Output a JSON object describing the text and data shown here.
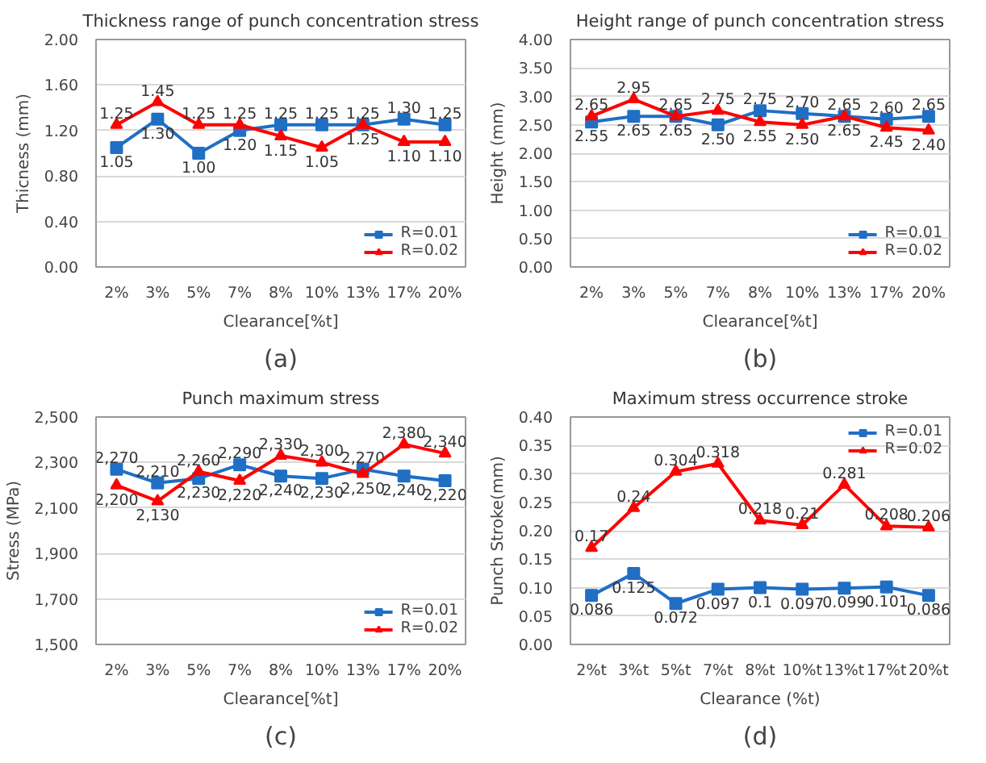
{
  "chart_data": [
    {
      "type": "line",
      "title": "Thickness range of punch concentration stress",
      "xlabel": "Clearance[%t]",
      "ylabel": "Thicness (mm)",
      "annotations": [
        "(a)"
      ],
      "legend": "bottom right",
      "grid": "y",
      "categories": [
        "2%",
        "3%",
        "5%",
        "7%",
        "8%",
        "10%",
        "13%",
        "17%",
        "20%"
      ],
      "ylim": [
        0,
        2
      ],
      "yticks": [
        {
          "value": 0,
          "label": "0.00"
        },
        {
          "value": 0.4,
          "label": "0.40"
        },
        {
          "value": 0.8,
          "label": "0.80"
        },
        {
          "value": 1.2,
          "label": "1.20"
        },
        {
          "value": 1.6,
          "label": "1.60"
        },
        {
          "value": 2,
          "label": "2.00"
        }
      ],
      "series": [
        {
          "name": "R=0.01",
          "color": "#1f6fc5",
          "marker": "square",
          "values": [
            1.05,
            1.3,
            1.0,
            1.2,
            1.25,
            1.25,
            1.25,
            1.3,
            1.25
          ],
          "value_labels": [
            "1.05",
            "1.30",
            "1.00",
            "1.20",
            "1.25",
            "1.25",
            "1.25",
            "1.30",
            "1.25"
          ]
        },
        {
          "name": "R=0.02",
          "color": "#ff0000",
          "marker": "triangle",
          "values": [
            1.25,
            1.45,
            1.25,
            1.25,
            1.15,
            1.05,
            1.25,
            1.1,
            1.1
          ],
          "value_labels": [
            "1.25",
            "1.45",
            "1.25",
            "1.25",
            "1.15",
            "1.05",
            "1.25",
            "1.10",
            "1.10"
          ]
        }
      ]
    },
    {
      "type": "line",
      "title": "Height range of punch concentration stress",
      "xlabel": "Clearance[%t]",
      "ylabel": "Height (mm)",
      "annotations": [
        "(b)"
      ],
      "legend": "bottom right",
      "grid": "y",
      "categories": [
        "2%",
        "3%",
        "5%",
        "7%",
        "8%",
        "10%",
        "13%",
        "17%",
        "20%"
      ],
      "ylim": [
        0,
        4
      ],
      "yticks": [
        {
          "value": 0,
          "label": "0.00"
        },
        {
          "value": 0.5,
          "label": "0.50"
        },
        {
          "value": 1,
          "label": "1.00"
        },
        {
          "value": 1.5,
          "label": "1.50"
        },
        {
          "value": 2,
          "label": "2.00"
        },
        {
          "value": 2.5,
          "label": "2.50"
        },
        {
          "value": 3,
          "label": "3.00"
        },
        {
          "value": 3.5,
          "label": "3.50"
        },
        {
          "value": 4,
          "label": "4.00"
        }
      ],
      "series": [
        {
          "name": "R=0.01",
          "color": "#1f6fc5",
          "marker": "square",
          "values": [
            2.55,
            2.65,
            2.65,
            2.5,
            2.75,
            2.7,
            2.65,
            2.6,
            2.65
          ],
          "value_labels": [
            "2.55",
            "2.65",
            "2.65",
            "2.50",
            "2.75",
            "2.70",
            "2.65",
            "2.60",
            "2.65"
          ]
        },
        {
          "name": "R=0.02",
          "color": "#ff0000",
          "marker": "triangle",
          "values": [
            2.65,
            2.95,
            2.65,
            2.75,
            2.55,
            2.5,
            2.65,
            2.45,
            2.4
          ],
          "value_labels": [
            "2.65",
            "2.95",
            "2.65",
            "2.75",
            "2.55",
            "2.50",
            "2.65",
            "2.45",
            "2.40"
          ]
        }
      ]
    },
    {
      "type": "line",
      "title": "Punch maximum stress",
      "xlabel": "Clearance[%t]",
      "ylabel": "Stress (MPa)",
      "annotations": [
        "(c)"
      ],
      "legend": "bottom right",
      "grid": "y",
      "categories": [
        "2%",
        "3%",
        "5%",
        "7%",
        "8%",
        "10%",
        "13%",
        "17%",
        "20%"
      ],
      "ylim": [
        1500,
        2500
      ],
      "yticks": [
        {
          "value": 1500,
          "label": "1,500"
        },
        {
          "value": 1700,
          "label": "1,700"
        },
        {
          "value": 1900,
          "label": "1,900"
        },
        {
          "value": 2100,
          "label": "2,100"
        },
        {
          "value": 2300,
          "label": "2,300"
        },
        {
          "value": 2500,
          "label": "2,500"
        }
      ],
      "series": [
        {
          "name": "R=0.01",
          "color": "#1f6fc5",
          "marker": "square",
          "values": [
            2270,
            2210,
            2230,
            2290,
            2240,
            2230,
            2270,
            2240,
            2220
          ],
          "value_labels": [
            "2,270",
            "2,210",
            "2,230",
            "2,290",
            "2,240",
            "2,230",
            "2,270",
            "2,240",
            "2,220"
          ]
        },
        {
          "name": "R=0.02",
          "color": "#ff0000",
          "marker": "triangle",
          "values": [
            2200,
            2130,
            2260,
            2220,
            2330,
            2300,
            2250,
            2380,
            2340
          ],
          "value_labels": [
            "2,200",
            "2,130",
            "2,260",
            "2,220",
            "2,330",
            "2,300",
            "2,250",
            "2,380",
            "2,340"
          ]
        }
      ]
    },
    {
      "type": "line",
      "title": "Maximum stress occurrence stroke",
      "xlabel": "Clearance (%t)",
      "ylabel": "Punch Stroke(mm)",
      "annotations": [
        "(d)"
      ],
      "legend": "top right",
      "grid": "y",
      "categories": [
        "2%t",
        "3%t",
        "5%t",
        "7%t",
        "8%t",
        "10%t",
        "13%t",
        "17%t",
        "20%t"
      ],
      "ylim": [
        0,
        0.4
      ],
      "yticks": [
        {
          "value": 0,
          "label": "0.00"
        },
        {
          "value": 0.05,
          "label": "0.05"
        },
        {
          "value": 0.1,
          "label": "0.10"
        },
        {
          "value": 0.15,
          "label": "0.15"
        },
        {
          "value": 0.2,
          "label": "0.20"
        },
        {
          "value": 0.25,
          "label": "0.25"
        },
        {
          "value": 0.3,
          "label": "0.30"
        },
        {
          "value": 0.35,
          "label": "0.35"
        },
        {
          "value": 0.4,
          "label": "0.40"
        }
      ],
      "series": [
        {
          "name": "R=0.01",
          "color": "#1f6fc5",
          "marker": "square",
          "values": [
            0.086,
            0.125,
            0.072,
            0.097,
            0.1,
            0.097,
            0.099,
            0.101,
            0.086
          ],
          "value_labels": [
            "0.086",
            "0.125",
            "0.072",
            "0.097",
            "0.1",
            "0.097",
            "0.099",
            "0.101",
            "0.086"
          ]
        },
        {
          "name": "R=0.02",
          "color": "#ff0000",
          "marker": "triangle",
          "values": [
            0.17,
            0.24,
            0.304,
            0.318,
            0.218,
            0.21,
            0.281,
            0.208,
            0.206
          ],
          "value_labels": [
            "0.17",
            "0.24",
            "0.304",
            "0.318",
            "0.218",
            "0.21",
            "0.281",
            "0.208",
            "0.206"
          ]
        }
      ]
    }
  ]
}
